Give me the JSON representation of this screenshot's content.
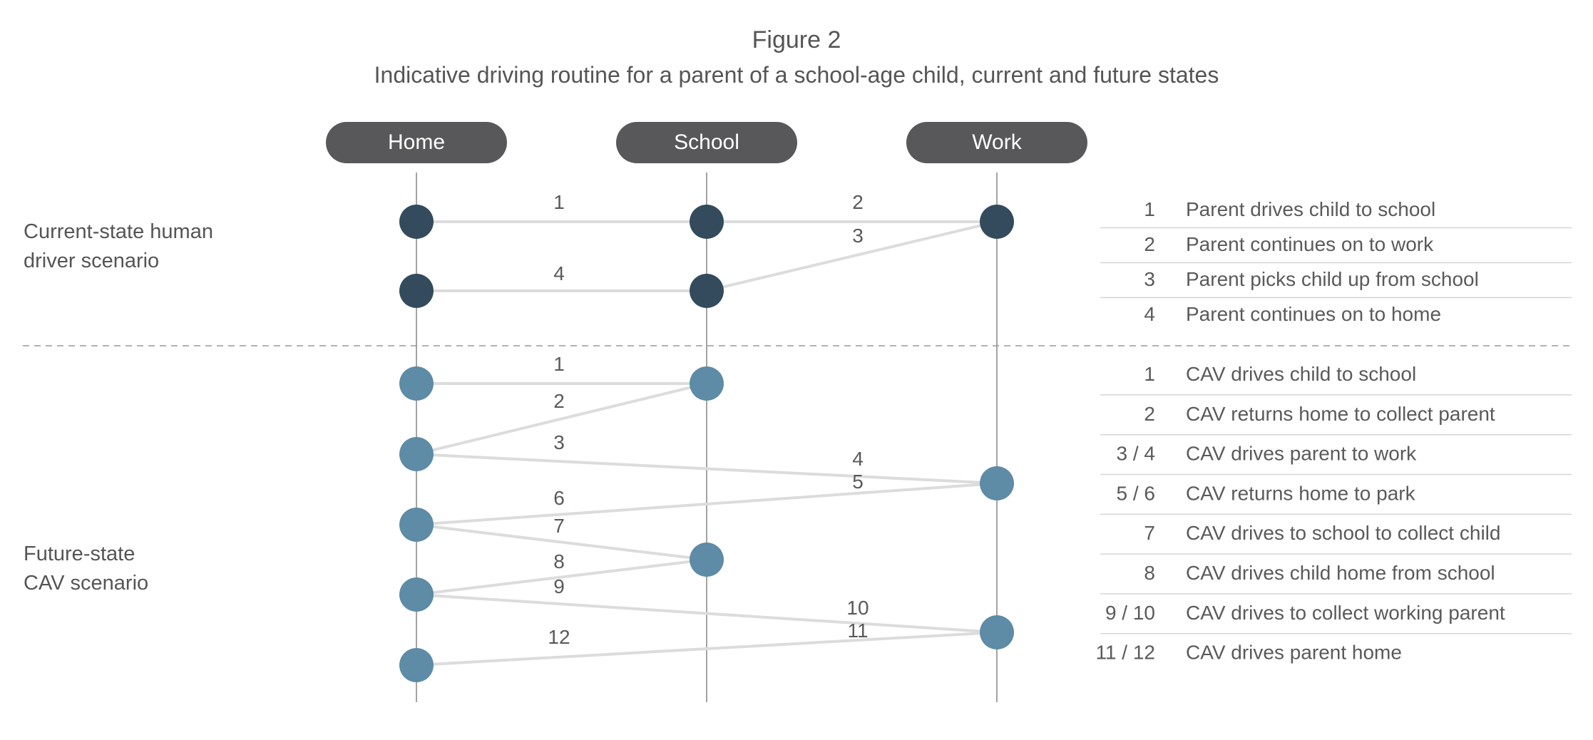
{
  "figure": {
    "number": "Figure 2",
    "title": "Indicative driving routine for a parent of a school-age child, current and future states"
  },
  "columns": [
    "Home",
    "School",
    "Work"
  ],
  "colors": {
    "current_node": "#334b5c",
    "future_node": "#5e8ba6",
    "column_pill": "#58585a",
    "route_line": "#dcdcdc",
    "column_line": "#8c8c8c",
    "divider": "#999999",
    "text": "#555555"
  },
  "scenarios": [
    {
      "id": "current",
      "label": [
        "Current-state human",
        "driver scenario"
      ],
      "node_style": "current",
      "steps": [
        {
          "label": "1",
          "from": "Home",
          "to": "School"
        },
        {
          "label": "2",
          "from": "School",
          "to": "Work"
        },
        {
          "label": "3",
          "from": "Work",
          "to": "School"
        },
        {
          "label": "4",
          "from": "School",
          "to": "Home"
        }
      ],
      "legend": [
        {
          "num": "1",
          "text": "Parent drives child to school"
        },
        {
          "num": "2",
          "text": "Parent continues on to work"
        },
        {
          "num": "3",
          "text": "Parent picks child up from school"
        },
        {
          "num": "4",
          "text": "Parent continues on to home"
        }
      ]
    },
    {
      "id": "future",
      "label": [
        "Future-state",
        "CAV scenario"
      ],
      "node_style": "future",
      "steps": [
        {
          "label": "1",
          "from": "Home",
          "to": "School"
        },
        {
          "label": "2",
          "from": "School",
          "to": "Home"
        },
        {
          "label": "3",
          "from": "Home",
          "to": "Work"
        },
        {
          "label": "4",
          "from": "Home",
          "to": "Work"
        },
        {
          "label": "5",
          "from": "Work",
          "to": "Home"
        },
        {
          "label": "6",
          "from": "Work",
          "to": "Home"
        },
        {
          "label": "7",
          "from": "Home",
          "to": "School"
        },
        {
          "label": "8",
          "from": "School",
          "to": "Home"
        },
        {
          "label": "9",
          "from": "Home",
          "to": "Work"
        },
        {
          "label": "10",
          "from": "Home",
          "to": "Work"
        },
        {
          "label": "11",
          "from": "Work",
          "to": "Home"
        },
        {
          "label": "12",
          "from": "Work",
          "to": "Home"
        }
      ],
      "legend": [
        {
          "num": "1",
          "text": "CAV drives child to school"
        },
        {
          "num": "2",
          "text": "CAV returns home to collect parent"
        },
        {
          "num": "3 / 4",
          "text": "CAV drives parent to work"
        },
        {
          "num": "5 / 6",
          "text": "CAV returns home to park"
        },
        {
          "num": "7",
          "text": "CAV drives to school to collect child"
        },
        {
          "num": "8",
          "text": "CAV drives child home from school"
        },
        {
          "num": "9 / 10",
          "text": "CAV drives to collect working parent"
        },
        {
          "num": "11 / 12",
          "text": "CAV drives parent home"
        }
      ]
    }
  ]
}
